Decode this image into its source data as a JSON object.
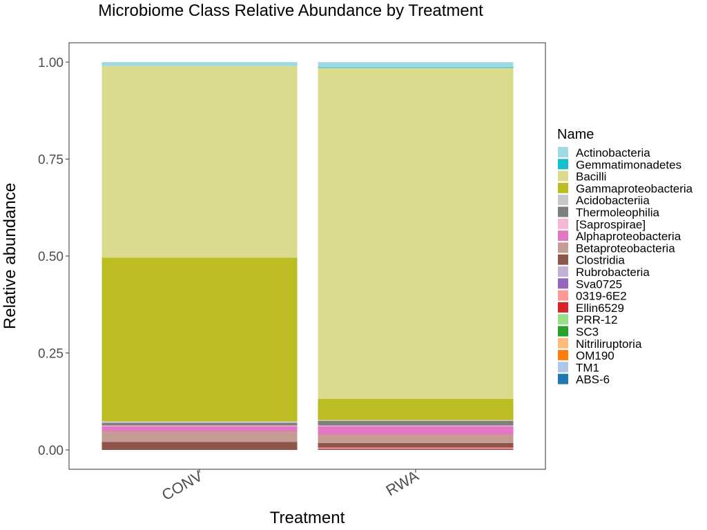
{
  "chart_data": {
    "type": "bar",
    "stacked": true,
    "title": "Microbiome Class Relative Abundance by Treatment",
    "xlabel": "Treatment",
    "ylabel": "Relative abundance",
    "ylim": [
      0,
      1
    ],
    "yticks": [
      "0.00",
      "0.25",
      "0.50",
      "0.75",
      "1.00"
    ],
    "ytick_values": [
      0,
      0.25,
      0.5,
      0.75,
      1.0
    ],
    "grid": false,
    "legend_title": "Name",
    "legend_position": "right",
    "categories": [
      "CONV",
      "RWA"
    ],
    "series": [
      {
        "name": "Actinobacteria",
        "color": "#9EDAE5",
        "values": [
          0.01,
          0.013
        ]
      },
      {
        "name": "Gemmatimonadetes",
        "color": "#17BECF",
        "values": [
          0.0,
          0.002
        ]
      },
      {
        "name": "Bacilli",
        "color": "#DBDB8D",
        "values": [
          0.494,
          0.853
        ]
      },
      {
        "name": "Gammaproteobacteria",
        "color": "#BCBD22",
        "values": [
          0.422,
          0.055
        ]
      },
      {
        "name": "Acidobacteriia",
        "color": "#C7C7C7",
        "values": [
          0.004,
          0.002
        ]
      },
      {
        "name": "Thermoleophilia",
        "color": "#7F7F7F",
        "values": [
          0.007,
          0.012
        ]
      },
      {
        "name": "[Saprospirae]",
        "color": "#F7B6D2",
        "values": [
          0.002,
          0.002
        ]
      },
      {
        "name": "Alphaproteobacteria",
        "color": "#E377C2",
        "values": [
          0.013,
          0.022
        ]
      },
      {
        "name": "Betaproteobacteria",
        "color": "#C49C94",
        "values": [
          0.027,
          0.021
        ]
      },
      {
        "name": "Clostridia",
        "color": "#8C564B",
        "values": [
          0.021,
          0.012
        ]
      },
      {
        "name": "Rubrobacteria",
        "color": "#C5B0D5",
        "values": [
          0.0,
          0.0
        ]
      },
      {
        "name": "Sva0725",
        "color": "#9467BD",
        "values": [
          0.0,
          0.0
        ]
      },
      {
        "name": "0319-6E2",
        "color": "#FF9896",
        "values": [
          0.0,
          0.003
        ]
      },
      {
        "name": "Ellin6529",
        "color": "#D62728",
        "values": [
          0.0,
          0.002
        ]
      },
      {
        "name": "PRR-12",
        "color": "#98DF8A",
        "values": [
          0.0,
          0.0
        ]
      },
      {
        "name": "SC3",
        "color": "#2CA02C",
        "values": [
          0.0,
          0.0
        ]
      },
      {
        "name": "Nitriliruptoria",
        "color": "#FFBB78",
        "values": [
          0.0,
          0.0
        ]
      },
      {
        "name": "OM190",
        "color": "#FF7F0E",
        "values": [
          0.0,
          0.0
        ]
      },
      {
        "name": "TM1",
        "color": "#AEC7E8",
        "values": [
          0.0,
          0.0
        ]
      },
      {
        "name": "ABS-6",
        "color": "#1F77B4",
        "values": [
          0.0,
          0.001
        ]
      }
    ]
  }
}
